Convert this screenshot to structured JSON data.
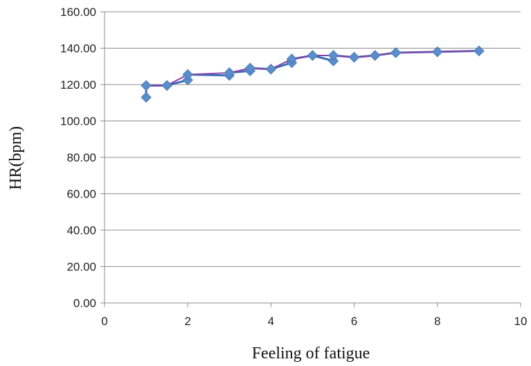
{
  "chart_data": {
    "type": "line",
    "title": "",
    "xlabel": "Feeling  of fatigue",
    "ylabel": "HR(bpm)",
    "xlim": [
      0,
      10
    ],
    "ylim": [
      0,
      160
    ],
    "xticks": [
      0,
      2,
      4,
      6,
      8,
      10
    ],
    "xtick_labels": [
      "0",
      "2",
      "4",
      "6",
      "8",
      "10"
    ],
    "yticks": [
      0,
      20,
      40,
      60,
      80,
      100,
      120,
      140,
      160
    ],
    "ytick_labels": [
      "0.00",
      "20.00",
      "40.00",
      "60.00",
      "80.00",
      "100.00",
      "120.00",
      "140.00",
      "160.00"
    ],
    "grid": "horizontal",
    "legend": "none",
    "series": [
      {
        "color": "#3a6fb7",
        "marker_color": "#5b8fcc",
        "x": [
          1,
          1,
          1.5,
          2,
          2,
          3,
          3,
          3.5,
          3.5,
          4,
          4.5,
          4.5,
          5,
          5.5,
          5.5,
          6,
          6.5,
          7,
          8,
          9
        ],
        "y": [
          113,
          119.5,
          119.5,
          122.5,
          125.5,
          125,
          126.5,
          127.5,
          129,
          128.5,
          132,
          134,
          136,
          133,
          136,
          135,
          136,
          137.5,
          138,
          138.5
        ]
      },
      {
        "color": "#8a3fa8",
        "marker_color": "#5b8fcc",
        "x": [
          1,
          1.5,
          2,
          3,
          3.5,
          4,
          4.5,
          5,
          5.5,
          6,
          6.5,
          7,
          8,
          9
        ],
        "y": [
          119.5,
          119.5,
          125.5,
          126.5,
          129,
          128.5,
          134,
          136,
          136,
          135,
          136,
          137.5,
          138,
          138.5
        ]
      }
    ]
  }
}
